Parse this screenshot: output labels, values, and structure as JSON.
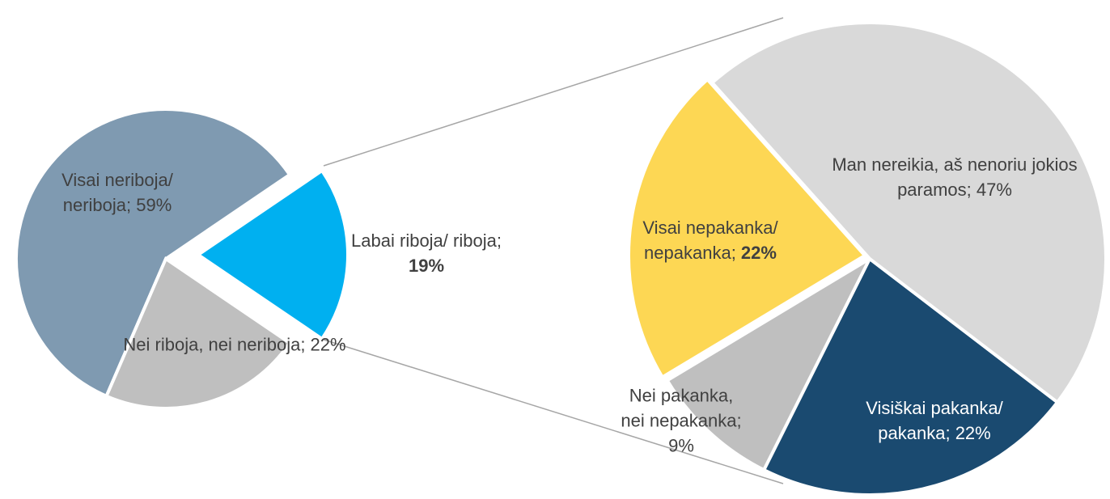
{
  "chart_data": [
    {
      "type": "pie",
      "categories": [
        "Labai riboja/ riboja",
        "Visai neriboja/ neriboja",
        "Nei riboja, nei neriboja"
      ],
      "values": [
        19,
        59,
        22
      ],
      "value_labels": [
        "19%",
        "59%",
        "22%"
      ],
      "colors": [
        "#00b0f0",
        "#7f9ab1",
        "#bfbfbf"
      ],
      "separator": "; ",
      "bold_values": [
        0
      ]
    },
    {
      "type": "pie",
      "categories": [
        "Visai nepakanka/ nepakanka",
        "Nei pakanka, nei nepakanka",
        "Visiškai pakanka/ pakanka",
        "Man nereikia, aš nenoriu jokios paramos"
      ],
      "values": [
        22,
        9,
        22,
        47
      ],
      "value_labels": [
        "22%",
        "9%",
        "22%",
        "47%"
      ],
      "colors": [
        "#fdd754",
        "#bfbfbf",
        "#1a4a70",
        "#d9d9d9"
      ],
      "separator": "; ",
      "bold_values": [
        0
      ]
    }
  ]
}
